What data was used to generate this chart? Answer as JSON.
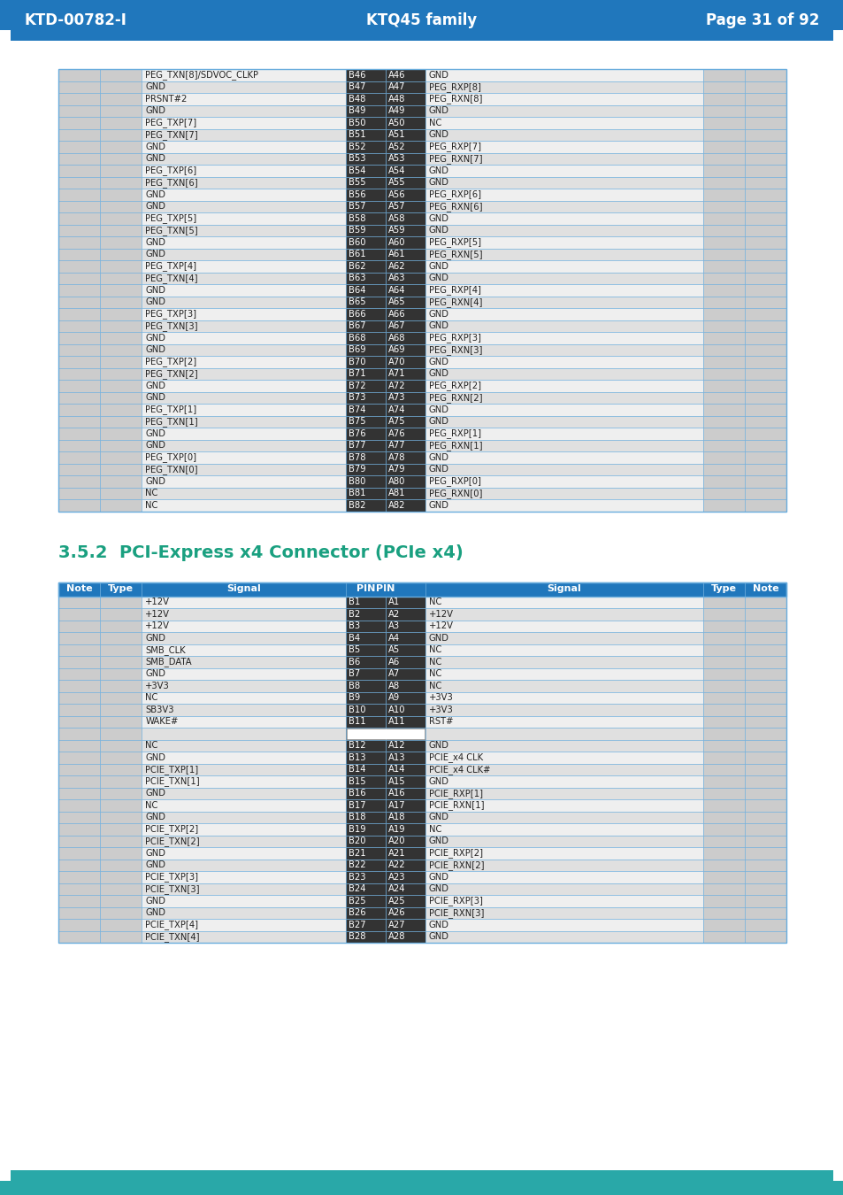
{
  "header_bg": "#2077bc",
  "header_text_color": "#ffffff",
  "header_left": "KTD-00782-I",
  "header_center": "KTQ45 family",
  "header_right": "Page 31 of 92",
  "footer_bg": "#29a8a8",
  "section_title": "3.5.2  PCI-Express x4 Connector (PCIe x4)",
  "section_title_color": "#1aa080",
  "pin_col_bg": "#333333",
  "pin_text_color": "#ffffff",
  "signal_bg_light": "#efefef",
  "signal_bg_dark": "#e0e0e0",
  "note_type_bg": "#cccccc",
  "border_color": "#6aaddd",
  "header_row_bg": "#2077bc",
  "table1_rows": [
    [
      "PEG_TXN[8]/SDVOC_CLKP",
      "B46",
      "A46",
      "GND"
    ],
    [
      "GND",
      "B47",
      "A47",
      "PEG_RXP[8]"
    ],
    [
      "PRSNT#2",
      "B48",
      "A48",
      "PEG_RXN[8]"
    ],
    [
      "GND",
      "B49",
      "A49",
      "GND"
    ],
    [
      "PEG_TXP[7]",
      "B50",
      "A50",
      "NC"
    ],
    [
      "PEG_TXN[7]",
      "B51",
      "A51",
      "GND"
    ],
    [
      "GND",
      "B52",
      "A52",
      "PEG_RXP[7]"
    ],
    [
      "GND",
      "B53",
      "A53",
      "PEG_RXN[7]"
    ],
    [
      "PEG_TXP[6]",
      "B54",
      "A54",
      "GND"
    ],
    [
      "PEG_TXN[6]",
      "B55",
      "A55",
      "GND"
    ],
    [
      "GND",
      "B56",
      "A56",
      "PEG_RXP[6]"
    ],
    [
      "GND",
      "B57",
      "A57",
      "PEG_RXN[6]"
    ],
    [
      "PEG_TXP[5]",
      "B58",
      "A58",
      "GND"
    ],
    [
      "PEG_TXN[5]",
      "B59",
      "A59",
      "GND"
    ],
    [
      "GND",
      "B60",
      "A60",
      "PEG_RXP[5]"
    ],
    [
      "GND",
      "B61",
      "A61",
      "PEG_RXN[5]"
    ],
    [
      "PEG_TXP[4]",
      "B62",
      "A62",
      "GND"
    ],
    [
      "PEG_TXN[4]",
      "B63",
      "A63",
      "GND"
    ],
    [
      "GND",
      "B64",
      "A64",
      "PEG_RXP[4]"
    ],
    [
      "GND",
      "B65",
      "A65",
      "PEG_RXN[4]"
    ],
    [
      "PEG_TXP[3]",
      "B66",
      "A66",
      "GND"
    ],
    [
      "PEG_TXN[3]",
      "B67",
      "A67",
      "GND"
    ],
    [
      "GND",
      "B68",
      "A68",
      "PEG_RXP[3]"
    ],
    [
      "GND",
      "B69",
      "A69",
      "PEG_RXN[3]"
    ],
    [
      "PEG_TXP[2]",
      "B70",
      "A70",
      "GND"
    ],
    [
      "PEG_TXN[2]",
      "B71",
      "A71",
      "GND"
    ],
    [
      "GND",
      "B72",
      "A72",
      "PEG_RXP[2]"
    ],
    [
      "GND",
      "B73",
      "A73",
      "PEG_RXN[2]"
    ],
    [
      "PEG_TXP[1]",
      "B74",
      "A74",
      "GND"
    ],
    [
      "PEG_TXN[1]",
      "B75",
      "A75",
      "GND"
    ],
    [
      "GND",
      "B76",
      "A76",
      "PEG_RXP[1]"
    ],
    [
      "GND",
      "B77",
      "A77",
      "PEG_RXN[1]"
    ],
    [
      "PEG_TXP[0]",
      "B78",
      "A78",
      "GND"
    ],
    [
      "PEG_TXN[0]",
      "B79",
      "A79",
      "GND"
    ],
    [
      "GND",
      "B80",
      "A80",
      "PEG_RXP[0]"
    ],
    [
      "NC",
      "B81",
      "A81",
      "PEG_RXN[0]"
    ],
    [
      "NC",
      "B82",
      "A82",
      "GND"
    ]
  ],
  "table2_rows": [
    [
      "+12V",
      "B1",
      "A1",
      "NC",
      false
    ],
    [
      "+12V",
      "B2",
      "A2",
      "+12V",
      false
    ],
    [
      "+12V",
      "B3",
      "A3",
      "+12V",
      false
    ],
    [
      "GND",
      "B4",
      "A4",
      "GND",
      false
    ],
    [
      "SMB_CLK",
      "B5",
      "A5",
      "NC",
      false
    ],
    [
      "SMB_DATA",
      "B6",
      "A6",
      "NC",
      false
    ],
    [
      "GND",
      "B7",
      "A7",
      "NC",
      false
    ],
    [
      "+3V3",
      "B8",
      "A8",
      "NC",
      false
    ],
    [
      "NC",
      "B9",
      "A9",
      "+3V3",
      false
    ],
    [
      "SB3V3",
      "B10",
      "A10",
      "+3V3",
      false
    ],
    [
      "WAKE#",
      "B11",
      "A11",
      "RST#",
      false
    ],
    [
      "",
      "",
      "",
      "",
      true
    ],
    [
      "NC",
      "B12",
      "A12",
      "GND",
      false
    ],
    [
      "GND",
      "B13",
      "A13",
      "PCIE_x4 CLK",
      false
    ],
    [
      "PCIE_TXP[1]",
      "B14",
      "A14",
      "PCIE_x4 CLK#",
      false
    ],
    [
      "PCIE_TXN[1]",
      "B15",
      "A15",
      "GND",
      false
    ],
    [
      "GND",
      "B16",
      "A16",
      "PCIE_RXP[1]",
      false
    ],
    [
      "NC",
      "B17",
      "A17",
      "PCIE_RXN[1]",
      false
    ],
    [
      "GND",
      "B18",
      "A18",
      "GND",
      false
    ],
    [
      "PCIE_TXP[2]",
      "B19",
      "A19",
      "NC",
      false
    ],
    [
      "PCIE_TXN[2]",
      "B20",
      "A20",
      "GND",
      false
    ],
    [
      "GND",
      "B21",
      "A21",
      "PCIE_RXP[2]",
      false
    ],
    [
      "GND",
      "B22",
      "A22",
      "PCIE_RXN[2]",
      false
    ],
    [
      "PCIE_TXP[3]",
      "B23",
      "A23",
      "GND",
      false
    ],
    [
      "PCIE_TXN[3]",
      "B24",
      "A24",
      "GND",
      false
    ],
    [
      "GND",
      "B25",
      "A25",
      "PCIE_RXP[3]",
      false
    ],
    [
      "GND",
      "B26",
      "A26",
      "PCIE_RXN[3]",
      false
    ],
    [
      "PCIE_TXP[4]",
      "B27",
      "A27",
      "GND",
      false
    ],
    [
      "PCIE_TXN[4]",
      "B28",
      "A28",
      "GND",
      false
    ]
  ]
}
